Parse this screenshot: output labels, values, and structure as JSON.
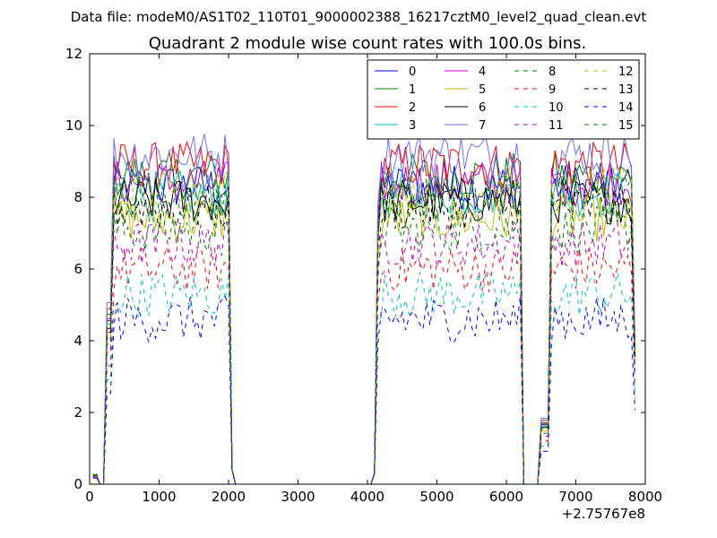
{
  "header": "Data file: modeM0/AS1T02_110T01_9000002388_16217cztM0_level2_quad_clean.evt",
  "chart_data": {
    "type": "line",
    "title": "Quadrant 2 module wise count rates with 100.0s bins.",
    "xlabel": "",
    "ylabel": "",
    "x_offset_label": "+2.75767e8",
    "xlim": [
      0,
      8000
    ],
    "ylim": [
      0,
      12
    ],
    "xticks": [
      0,
      1000,
      2000,
      3000,
      4000,
      5000,
      6000,
      7000,
      8000
    ],
    "yticks": [
      0,
      2,
      4,
      6,
      8,
      10,
      12
    ],
    "grid": false,
    "legend": {
      "placement": "top-right",
      "columns": 4,
      "entries": [
        "0",
        "1",
        "2",
        "3",
        "4",
        "5",
        "6",
        "7",
        "8",
        "9",
        "10",
        "11",
        "12",
        "13",
        "14",
        "15"
      ]
    },
    "active_intervals": [
      {
        "start": 350,
        "end": 2000
      },
      {
        "start": 4200,
        "end": 6200
      },
      {
        "start": 6650,
        "end": 7800
      }
    ],
    "series": [
      {
        "name": "0",
        "color": "#0000ff",
        "style": "solid",
        "level": 8.3
      },
      {
        "name": "1",
        "color": "#008000",
        "style": "solid",
        "level": 8.6
      },
      {
        "name": "2",
        "color": "#ff0000",
        "style": "solid",
        "level": 8.9
      },
      {
        "name": "3",
        "color": "#00bfbf",
        "style": "solid",
        "level": 8.1
      },
      {
        "name": "4",
        "color": "#bf00bf",
        "style": "solid",
        "level": 8.4
      },
      {
        "name": "5",
        "color": "#bfbf00",
        "style": "solid",
        "level": 7.4
      },
      {
        "name": "6",
        "color": "#000000",
        "style": "solid",
        "level": 7.9
      },
      {
        "name": "7",
        "color": "#6f6fff",
        "style": "solid",
        "level": 9.2
      },
      {
        "name": "8",
        "color": "#008000",
        "style": "dashed",
        "level": 7.1
      },
      {
        "name": "9",
        "color": "#ff0000",
        "style": "dashed",
        "level": 6.0
      },
      {
        "name": "10",
        "color": "#00bfbf",
        "style": "dashed",
        "level": 5.3
      },
      {
        "name": "11",
        "color": "#bf00bf",
        "style": "dashed",
        "level": 6.7
      },
      {
        "name": "12",
        "color": "#bfbf00",
        "style": "dashed",
        "level": 8.2
      },
      {
        "name": "13",
        "color": "#000000",
        "style": "dashed",
        "level": 7.7
      },
      {
        "name": "14",
        "color": "#0000ff",
        "style": "dashed",
        "level": 4.6
      },
      {
        "name": "15",
        "color": "#008000",
        "style": "dashed",
        "level": 8.0
      }
    ]
  }
}
